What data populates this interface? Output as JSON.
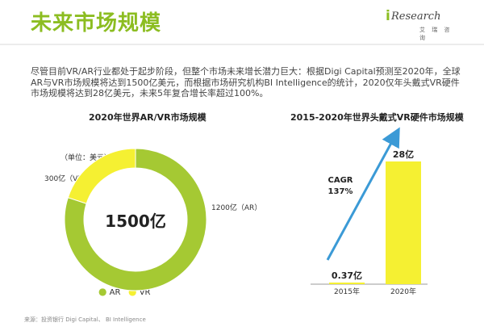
{
  "page": {
    "title": "未来市场规模",
    "logo_i": "i",
    "logo_brand": "Research",
    "logo_sub": "艾 瑞 咨 询",
    "intro": "尽管目前VR/AR行业都处于起步阶段，但整个市场未来增长潜力巨大：根据Digi Capital预测至2020年，全球AR与VR市场规模将达到1500亿美元，而根据市场研究机构BI Intelligence的统计，2020仅年头戴式VR硬件市场规模将达到28亿美元，未来5年复合增长率超过100%。",
    "source": "来源：投资银行 Digi Capital、 BI Intelligence"
  },
  "chart_data": [
    {
      "type": "pie",
      "title": "2020年世界AR/VR市场规模",
      "unit_note": "（单位：美元）",
      "center_label": "1500亿",
      "series": [
        {
          "name": "AR",
          "value": 1200,
          "label": "1200亿（AR）",
          "color": "#a5c933"
        },
        {
          "name": "VR",
          "value": 300,
          "label": "300亿（VR）",
          "color": "#f5f032"
        }
      ],
      "legend": [
        "AR",
        "VR"
      ],
      "legend_placement": "bottom"
    },
    {
      "type": "bar",
      "title": "2015-2020年世界头戴式VR硬件市场规模",
      "categories": [
        "2015年",
        "2020年"
      ],
      "values": [
        0.37,
        28
      ],
      "data_labels": [
        "0.37亿",
        "28亿"
      ],
      "annotation": {
        "label": "CAGR",
        "value": "137%"
      },
      "color": "#f5f032",
      "arrow_color": "#3b9ad6"
    }
  ]
}
